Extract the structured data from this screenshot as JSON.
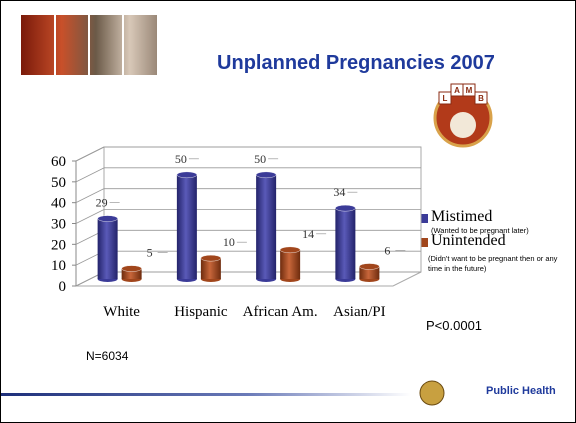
{
  "chart_data": {
    "type": "bar",
    "title": "Unplanned Pregnancies 2007",
    "categories": [
      "White",
      "Hispanic",
      "African Am.",
      "Asian/PI"
    ],
    "series": [
      {
        "name": "Mistimed",
        "description": "(Wanted to be pregnant later)",
        "color": "#3b3b98",
        "values": [
          29,
          50,
          50,
          34
        ]
      },
      {
        "name": "Unintended",
        "description": "(Didn't want to be pregnant then or any time in the future)",
        "color": "#a1461c",
        "values": [
          5,
          10,
          14,
          6
        ]
      }
    ],
    "ylim": [
      0,
      60
    ],
    "yticks": [
      0,
      10,
      20,
      30,
      40,
      50,
      60
    ],
    "grid": true,
    "annotations": [
      "N=6034",
      "P<0.0001"
    ],
    "logos": [
      "L",
      "A",
      "M",
      "B",
      "Public Health"
    ]
  }
}
